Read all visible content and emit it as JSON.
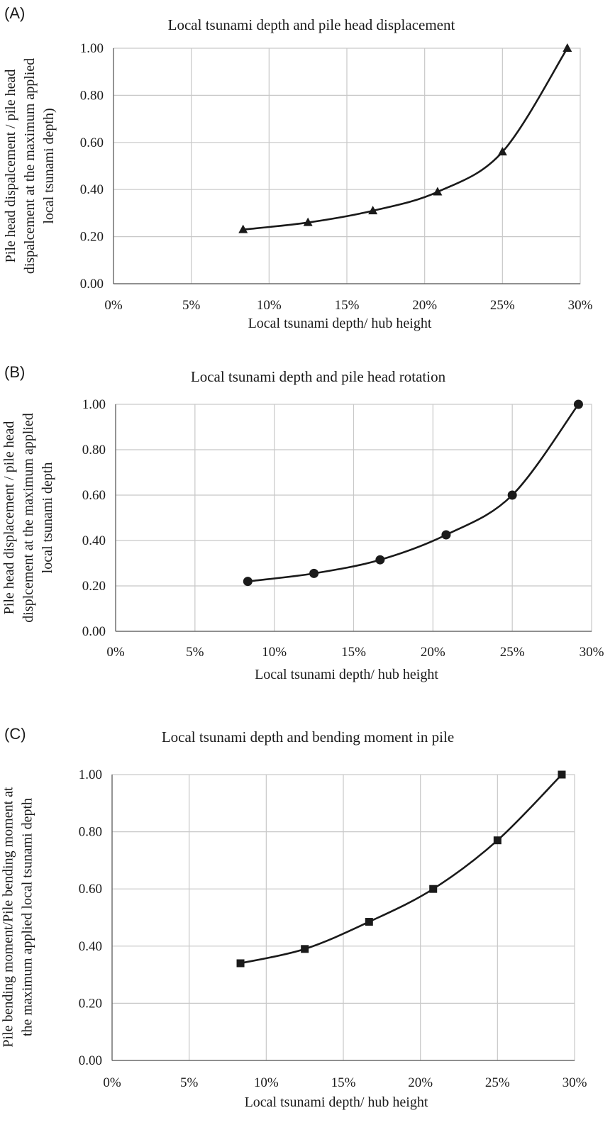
{
  "chart_data": [
    {
      "type": "line",
      "panel_label": "(A)",
      "title": "Local tsunami depth and pile head displacement",
      "xlabel": "Local tsunami depth/ hub height",
      "ylabel_lines": [
        "Pile head dispalcement / pile head",
        "dispalcement at the maximum applied",
        "local tsunami depth)"
      ],
      "x_ticks": [
        "0%",
        "5%",
        "10%",
        "15%",
        "20%",
        "25%",
        "30%"
      ],
      "y_ticks": [
        "0.00",
        "0.20",
        "0.40",
        "0.60",
        "0.80",
        "1.00"
      ],
      "xlim": [
        0,
        0.3
      ],
      "ylim": [
        0,
        1.0
      ],
      "marker": "triangle",
      "grid": true,
      "series": [
        {
          "x": [
            0.0833,
            0.125,
            0.1667,
            0.2083,
            0.25,
            0.2917
          ],
          "values": [
            0.23,
            0.26,
            0.31,
            0.39,
            0.56,
            1.0
          ]
        }
      ]
    },
    {
      "type": "line",
      "panel_label": "(B)",
      "title": "Local tsunami depth and pile head rotation",
      "xlabel": "Local tsunami depth/ hub height",
      "ylabel_lines": [
        "Pile head displacement / pile head",
        "displcement at the maximum applied",
        "local tsunami depth"
      ],
      "x_ticks": [
        "0%",
        "5%",
        "10%",
        "15%",
        "20%",
        "25%",
        "30%"
      ],
      "y_ticks": [
        "0.00",
        "0.20",
        "0.40",
        "0.60",
        "0.80",
        "1.00"
      ],
      "xlim": [
        0,
        0.3
      ],
      "ylim": [
        0,
        1.0
      ],
      "marker": "circle",
      "grid": true,
      "series": [
        {
          "x": [
            0.0833,
            0.125,
            0.1667,
            0.2083,
            0.25,
            0.2917
          ],
          "values": [
            0.22,
            0.255,
            0.315,
            0.425,
            0.6,
            1.0
          ]
        }
      ]
    },
    {
      "type": "line",
      "panel_label": "(C)",
      "title": "Local tsunami depth and bending moment in pile",
      "xlabel": "Local tsunami depth/ hub height",
      "ylabel_lines": [
        "Pile bending moment/Pile bending moment at",
        "the maximum applied local tsunami depth"
      ],
      "x_ticks": [
        "0%",
        "5%",
        "10%",
        "15%",
        "20%",
        "25%",
        "30%"
      ],
      "y_ticks": [
        "0.00",
        "0.20",
        "0.40",
        "0.60",
        "0.80",
        "1.00"
      ],
      "xlim": [
        0,
        0.3
      ],
      "ylim": [
        0,
        1.0
      ],
      "marker": "square",
      "grid": true,
      "series": [
        {
          "x": [
            0.0833,
            0.125,
            0.1667,
            0.2083,
            0.25,
            0.2917
          ],
          "values": [
            0.34,
            0.39,
            0.485,
            0.6,
            0.77,
            1.0
          ]
        }
      ]
    }
  ]
}
